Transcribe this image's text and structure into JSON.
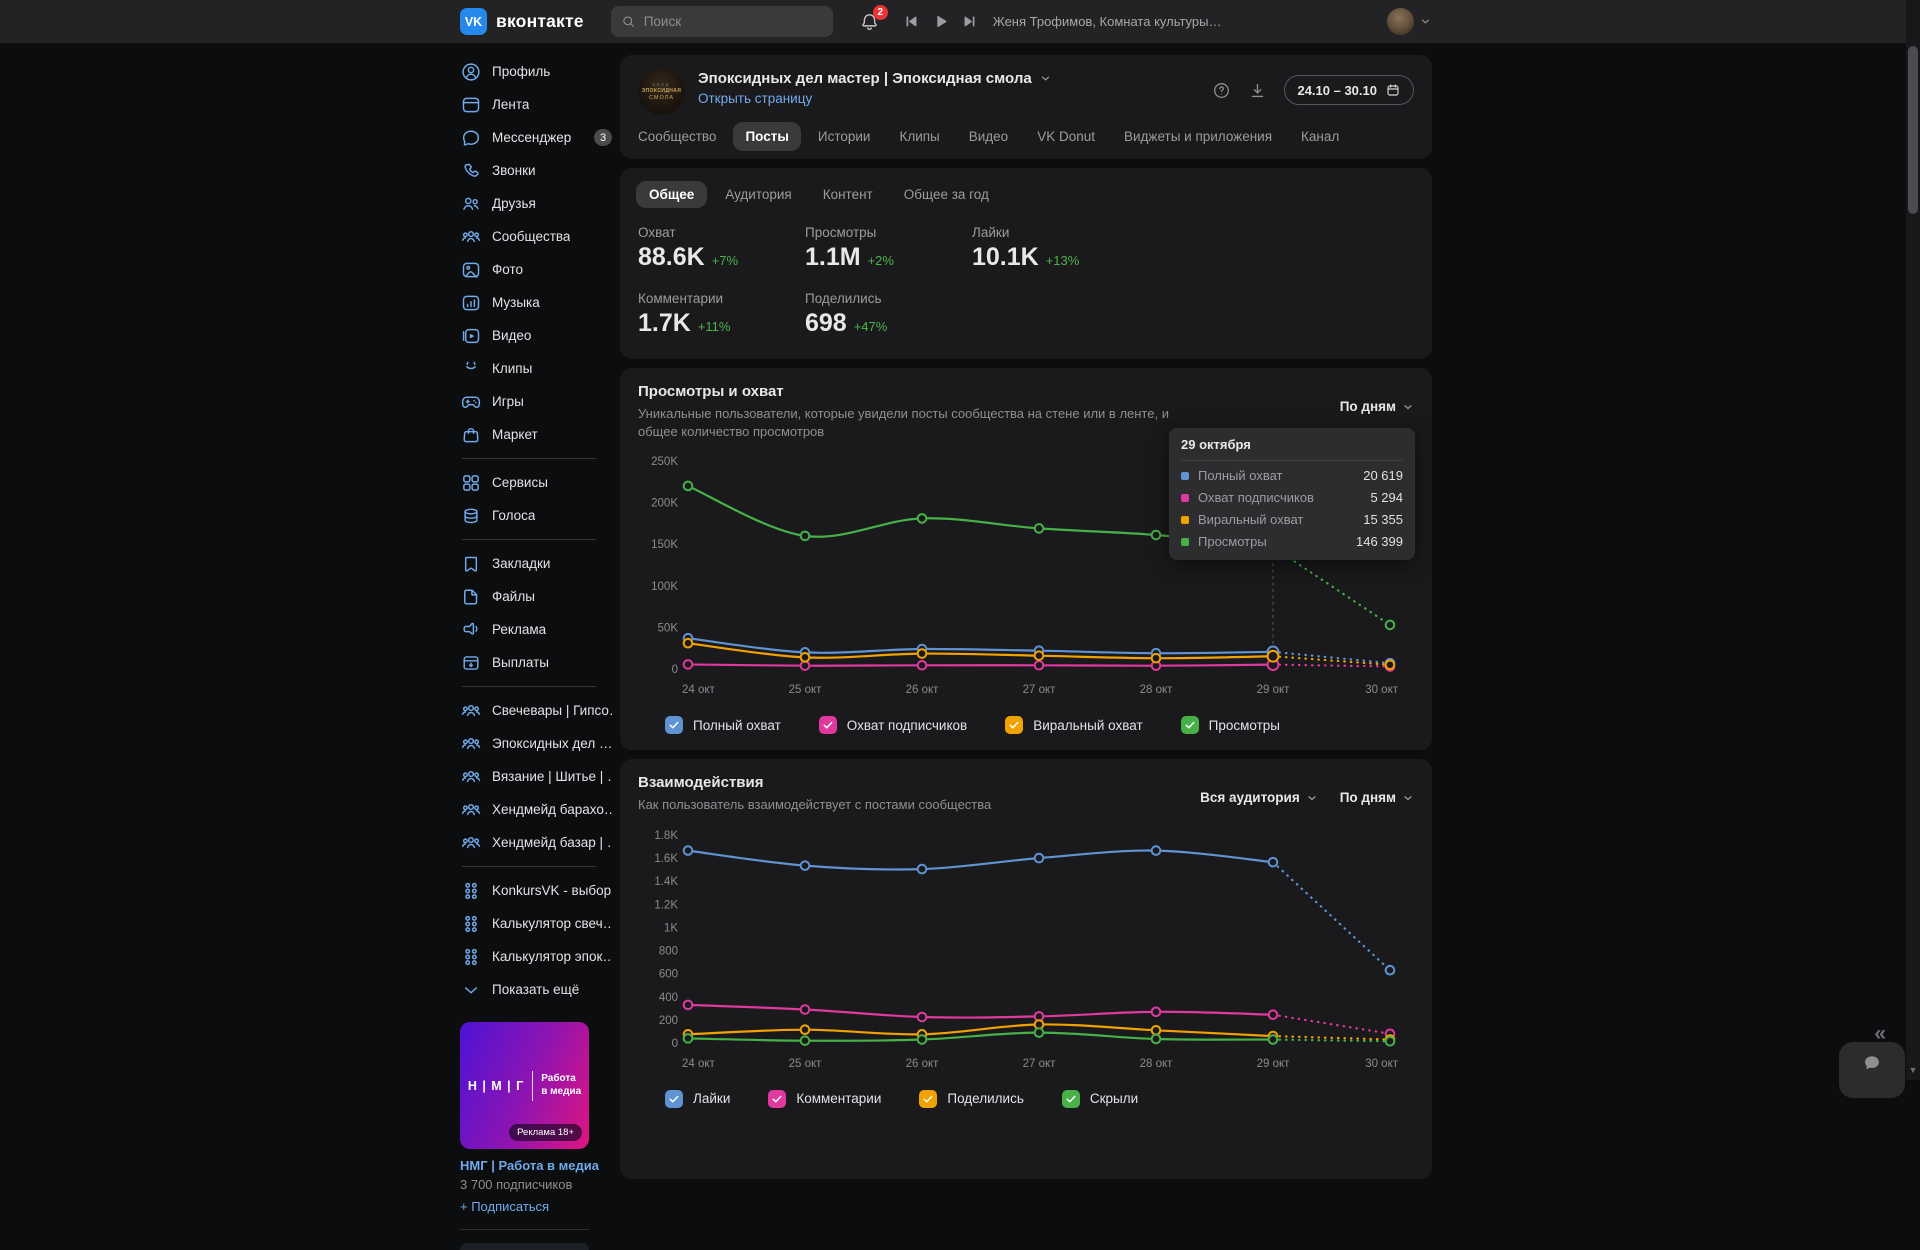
{
  "topbar": {
    "logo_monogram": "VK",
    "logo_text": "вконтакте",
    "search_placeholder": "Поиск",
    "notifications_badge": "2",
    "now_playing": "Женя Трофимов, Комната культуры…"
  },
  "sidebar": {
    "items": [
      {
        "key": "profile",
        "icon": "user",
        "label": "Профиль"
      },
      {
        "key": "feed",
        "icon": "feed",
        "label": "Лента"
      },
      {
        "key": "messenger",
        "icon": "messenger",
        "label": "Мессенджер",
        "badge": "3"
      },
      {
        "key": "calls",
        "icon": "phone",
        "label": "Звонки"
      },
      {
        "key": "friends",
        "icon": "friends",
        "label": "Друзья"
      },
      {
        "key": "communities",
        "icon": "communities",
        "label": "Сообщества"
      },
      {
        "key": "photos",
        "icon": "photo",
        "label": "Фото"
      },
      {
        "key": "music",
        "icon": "music",
        "label": "Музыка"
      },
      {
        "key": "video",
        "icon": "video",
        "label": "Видео"
      },
      {
        "key": "clips",
        "icon": "clips",
        "label": "Клипы"
      },
      {
        "key": "games",
        "icon": "games",
        "label": "Игры"
      },
      {
        "key": "market",
        "icon": "market",
        "label": "Маркет"
      },
      {
        "divider": true
      },
      {
        "key": "services",
        "icon": "services",
        "label": "Сервисы"
      },
      {
        "key": "votes",
        "icon": "coins",
        "label": "Голоса"
      },
      {
        "divider": true
      },
      {
        "key": "bookmarks",
        "icon": "bookmark",
        "label": "Закладки"
      },
      {
        "key": "files",
        "icon": "file",
        "label": "Файлы"
      },
      {
        "key": "ads",
        "icon": "megaphone",
        "label": "Реклама"
      },
      {
        "key": "payouts",
        "icon": "payouts",
        "label": "Выплаты"
      },
      {
        "divider": true
      },
      {
        "key": "community-svechevary",
        "icon": "communities",
        "label": "Свечевары | Гипсо…"
      },
      {
        "key": "community-epoxy",
        "icon": "communities",
        "label": "Эпоксидных дел …"
      },
      {
        "key": "community-vyazanie",
        "icon": "communities",
        "label": "Вязание | Шитье | …"
      },
      {
        "key": "community-handmade-barakholka",
        "icon": "communities",
        "label": "Хендмейд барахо…"
      },
      {
        "key": "community-handmade-bazar",
        "icon": "communities",
        "label": "Хендмейд базар | …"
      },
      {
        "divider": true
      },
      {
        "key": "app-konkursvk",
        "icon": "app-grid",
        "label": "KonkursVK - выбор…"
      },
      {
        "key": "app-calc-svech",
        "icon": "app-grid",
        "label": "Калькулятор свеч…"
      },
      {
        "key": "app-calc-epoxy",
        "icon": "app-grid",
        "label": "Калькулятор эпок…"
      },
      {
        "key": "show-more",
        "icon": "chevron-down",
        "label": "Показать ещё"
      }
    ],
    "ad": {
      "logo_left": "Н | М | Г",
      "logo_right_line1": "Работа",
      "logo_right_line2": "в медиа",
      "badge": "Реклама 18+",
      "title": "НМГ | Работа в медиа",
      "subscribers": "3 700 подписчиков",
      "subscribe_label": "+ Подписаться"
    }
  },
  "header": {
    "community_name": "Эпоксидных дел мастер | Эпоксидная смола",
    "avatar_line1": "КЛУБ",
    "avatar_line2": "ЭПОКСИДНАЯ",
    "avatar_line3": "СМОЛА",
    "open_page_label": "Открыть страницу",
    "date_range": "24.10 – 30.10",
    "tabs": [
      "Сообщество",
      "Посты",
      "Истории",
      "Клипы",
      "Видео",
      "VK Donut",
      "Виджеты и приложения",
      "Канал"
    ],
    "active_tab": "Посты"
  },
  "stats": {
    "tabs": [
      "Общее",
      "Аудитория",
      "Контент",
      "Общее за год"
    ],
    "active_tab": "Общее",
    "metrics": [
      {
        "label": "Охват",
        "value": "88.6K",
        "change": "+7%"
      },
      {
        "label": "Просмотры",
        "value": "1.1M",
        "change": "+2%"
      },
      {
        "label": "Лайки",
        "value": "10.1K",
        "change": "+13%"
      },
      {
        "label": "Комментарии",
        "value": "1.7K",
        "change": "+11%"
      },
      {
        "label": "Поделились",
        "value": "698",
        "change": "+47%"
      }
    ]
  },
  "chart_data": [
    {
      "type": "line",
      "title": "Просмотры и охват",
      "subtitle": "Уникальные пользователи, которые увидели посты сообщества на стене или в ленте, и общее количество просмотров",
      "period_selector": "По дням",
      "categories": [
        "24 окт",
        "25 окт",
        "26 окт",
        "27 окт",
        "28 окт",
        "29 окт",
        "30 окт"
      ],
      "ylim": [
        0,
        250000
      ],
      "y_ticks": [
        "0",
        "50K",
        "100K",
        "150K",
        "200K",
        "250K"
      ],
      "grid": false,
      "legend_position": "bottom",
      "dashed_from_index": 5,
      "hover_index": 5,
      "series": [
        {
          "name": "Полный охват",
          "color": "#5f93d2",
          "values": [
            37000,
            20000,
            24000,
            22000,
            19000,
            20619,
            7000
          ]
        },
        {
          "name": "Охват подписчиков",
          "color": "#e0399f",
          "values": [
            5500,
            4000,
            4500,
            4500,
            4000,
            5294,
            3000
          ]
        },
        {
          "name": "Виральный охват",
          "color": "#f2a200",
          "values": [
            31000,
            14000,
            18500,
            16000,
            13000,
            15355,
            5000
          ]
        },
        {
          "name": "Просмотры",
          "color": "#47b148",
          "values": [
            220000,
            160000,
            181000,
            169000,
            161000,
            146399,
            53000
          ]
        }
      ],
      "tooltip": {
        "title": "29 октября",
        "rows": [
          {
            "name": "Полный охват",
            "value": "20 619",
            "color": "#5f93d2"
          },
          {
            "name": "Охват подписчиков",
            "value": "5 294",
            "color": "#e0399f"
          },
          {
            "name": "Виральный охват",
            "value": "15 355",
            "color": "#f2a200"
          },
          {
            "name": "Просмотры",
            "value": "146 399",
            "color": "#47b148"
          }
        ]
      }
    },
    {
      "type": "line",
      "title": "Взаимодействия",
      "subtitle": "Как пользователь взаимодействует с постами сообщества",
      "audience_selector": "Вся аудитория",
      "period_selector": "По дням",
      "categories": [
        "24 окт",
        "25 окт",
        "26 окт",
        "27 окт",
        "28 окт",
        "29 окт",
        "30 окт"
      ],
      "ylim": [
        0,
        1800
      ],
      "y_ticks": [
        "0",
        "200",
        "400",
        "600",
        "800",
        "1K",
        "1.2K",
        "1.4K",
        "1.6K",
        "1.8K"
      ],
      "grid": false,
      "legend_position": "bottom",
      "dashed_from_index": 5,
      "series": [
        {
          "name": "Лайки",
          "color": "#5f93d2",
          "values": [
            1665,
            1535,
            1505,
            1600,
            1665,
            1565,
            630
          ]
        },
        {
          "name": "Комментарии",
          "color": "#e0399f",
          "values": [
            330,
            290,
            225,
            230,
            270,
            245,
            80
          ]
        },
        {
          "name": "Поделились",
          "color": "#f2a200",
          "values": [
            75,
            115,
            75,
            160,
            110,
            60,
            30
          ]
        },
        {
          "name": "Скрыли",
          "color": "#47b148",
          "values": [
            40,
            20,
            30,
            90,
            35,
            30,
            15
          ]
        }
      ]
    }
  ],
  "colors": {
    "accent_blue": "#71aaeb",
    "positive_green": "#4bb34b",
    "badge_red": "#ee3336",
    "card_bg": "#1a1a1c"
  },
  "floating": {
    "collapse_glyph": "«"
  }
}
